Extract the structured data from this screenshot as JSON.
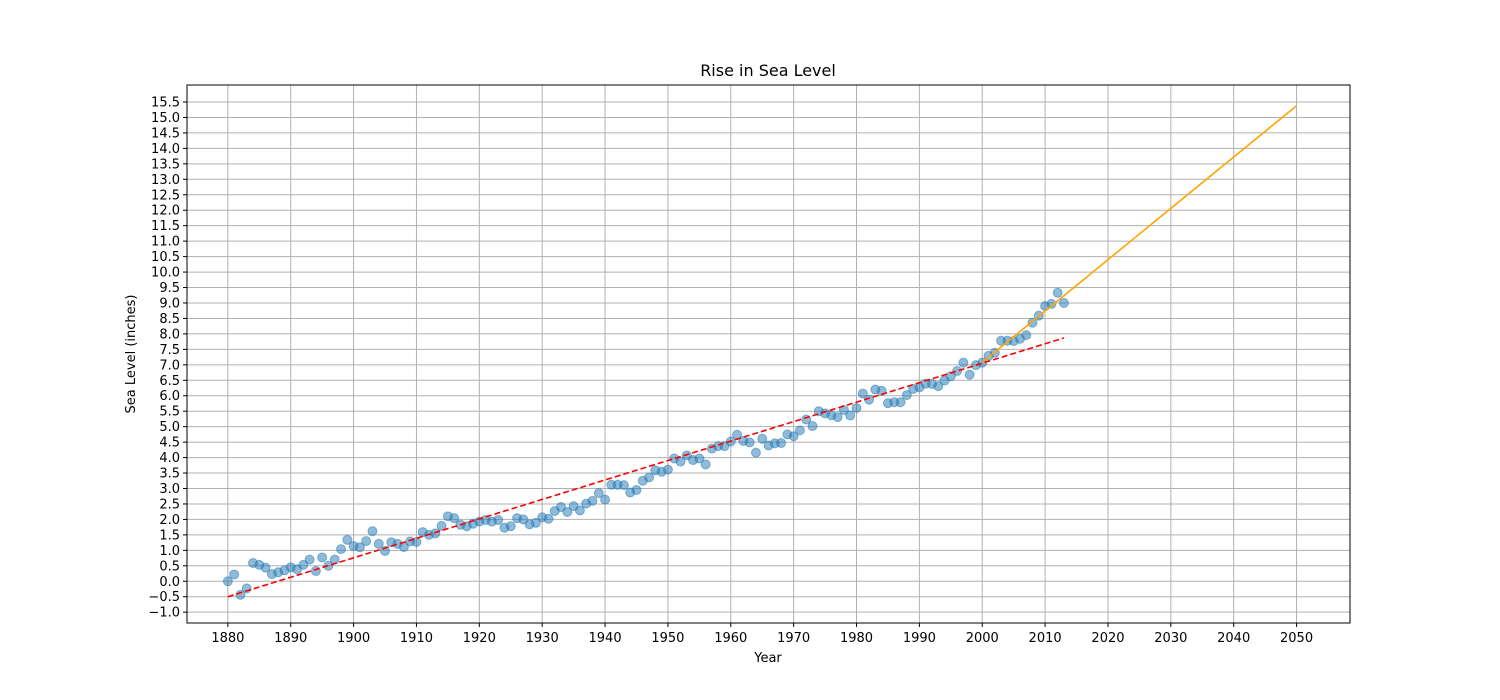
{
  "chart_data": {
    "type": "scatter",
    "title": "Rise in Sea Level",
    "xlabel": "Year",
    "ylabel": "Sea Level (inches)",
    "xlim": [
      1873.5,
      2058.5
    ],
    "ylim": [
      -1.35,
      16.05
    ],
    "x_ticks": [
      1880,
      1890,
      1900,
      1910,
      1920,
      1930,
      1940,
      1950,
      1960,
      1970,
      1980,
      1990,
      2000,
      2010,
      2020,
      2030,
      2040,
      2050
    ],
    "y_ticks": [
      -1.0,
      -0.5,
      0.0,
      0.5,
      1.0,
      1.5,
      2.0,
      2.5,
      3.0,
      3.5,
      4.0,
      4.5,
      5.0,
      5.5,
      6.0,
      6.5,
      7.0,
      7.5,
      8.0,
      8.5,
      9.0,
      9.5,
      10.0,
      10.5,
      11.0,
      11.5,
      12.0,
      12.5,
      13.0,
      13.5,
      14.0,
      14.5,
      15.0,
      15.5
    ],
    "grid": true,
    "colors": {
      "points": "#1f77b4",
      "fit_all": "#ff0000",
      "fit_recent": "#ffa500"
    },
    "series": [
      {
        "kind": "scatter",
        "x": [
          1880,
          1881,
          1882,
          1883,
          1884,
          1885,
          1886,
          1887,
          1888,
          1889,
          1890,
          1891,
          1892,
          1893,
          1894,
          1895,
          1896,
          1897,
          1898,
          1899,
          1900,
          1901,
          1902,
          1903,
          1904,
          1905,
          1906,
          1907,
          1908,
          1909,
          1910,
          1911,
          1912,
          1913,
          1914,
          1915,
          1916,
          1917,
          1918,
          1919,
          1920,
          1921,
          1922,
          1923,
          1924,
          1925,
          1926,
          1927,
          1928,
          1929,
          1930,
          1931,
          1932,
          1933,
          1934,
          1935,
          1936,
          1937,
          1938,
          1939,
          1940,
          1941,
          1942,
          1943,
          1944,
          1945,
          1946,
          1947,
          1948,
          1949,
          1950,
          1951,
          1952,
          1953,
          1954,
          1955,
          1956,
          1957,
          1958,
          1959,
          1960,
          1961,
          1962,
          1963,
          1964,
          1965,
          1966,
          1967,
          1968,
          1969,
          1970,
          1971,
          1972,
          1973,
          1974,
          1975,
          1976,
          1977,
          1978,
          1979,
          1980,
          1981,
          1982,
          1983,
          1984,
          1985,
          1986,
          1987,
          1988,
          1989,
          1990,
          1991,
          1992,
          1993,
          1994,
          1995,
          1996,
          1997,
          1998,
          1999,
          2000,
          2001,
          2002,
          2003,
          2004,
          2005,
          2006,
          2007,
          2008,
          2009,
          2010,
          2011,
          2012,
          2013
        ],
        "y": [
          0.0,
          0.22,
          -0.44,
          -0.23,
          0.59,
          0.53,
          0.44,
          0.23,
          0.29,
          0.35,
          0.45,
          0.39,
          0.53,
          0.7,
          0.33,
          0.77,
          0.5,
          0.7,
          1.04,
          1.34,
          1.14,
          1.1,
          1.3,
          1.62,
          1.21,
          0.98,
          1.26,
          1.21,
          1.11,
          1.29,
          1.27,
          1.59,
          1.5,
          1.55,
          1.79,
          2.1,
          2.04,
          1.83,
          1.78,
          1.86,
          1.93,
          1.98,
          1.93,
          1.98,
          1.73,
          1.78,
          2.04,
          2.0,
          1.84,
          1.89,
          2.07,
          2.02,
          2.27,
          2.4,
          2.24,
          2.43,
          2.29,
          2.51,
          2.6,
          2.85,
          2.64,
          3.12,
          3.12,
          3.11,
          2.87,
          2.95,
          3.25,
          3.36,
          3.59,
          3.54,
          3.61,
          3.97,
          3.87,
          4.07,
          3.92,
          3.97,
          3.78,
          4.29,
          4.37,
          4.37,
          4.52,
          4.74,
          4.54,
          4.49,
          4.16,
          4.61,
          4.39,
          4.46,
          4.47,
          4.75,
          4.69,
          4.88,
          5.23,
          5.02,
          5.5,
          5.43,
          5.37,
          5.31,
          5.54,
          5.36,
          5.6,
          6.07,
          5.87,
          6.2,
          6.16,
          5.76,
          5.79,
          5.79,
          6.02,
          6.22,
          6.27,
          6.39,
          6.38,
          6.31,
          6.49,
          6.63,
          6.8,
          7.07,
          6.68,
          6.99,
          7.07,
          7.29,
          7.39,
          7.78,
          7.78,
          7.77,
          7.84,
          7.96,
          8.36,
          8.59,
          8.9,
          8.97,
          9.33,
          9.0
        ]
      },
      {
        "kind": "line",
        "style": "dashed",
        "x": [
          1880,
          2013
        ],
        "y": [
          -0.5,
          7.87
        ]
      },
      {
        "kind": "line",
        "style": "solid",
        "x": [
          2000,
          2050
        ],
        "y": [
          7.08,
          15.38
        ]
      }
    ]
  }
}
